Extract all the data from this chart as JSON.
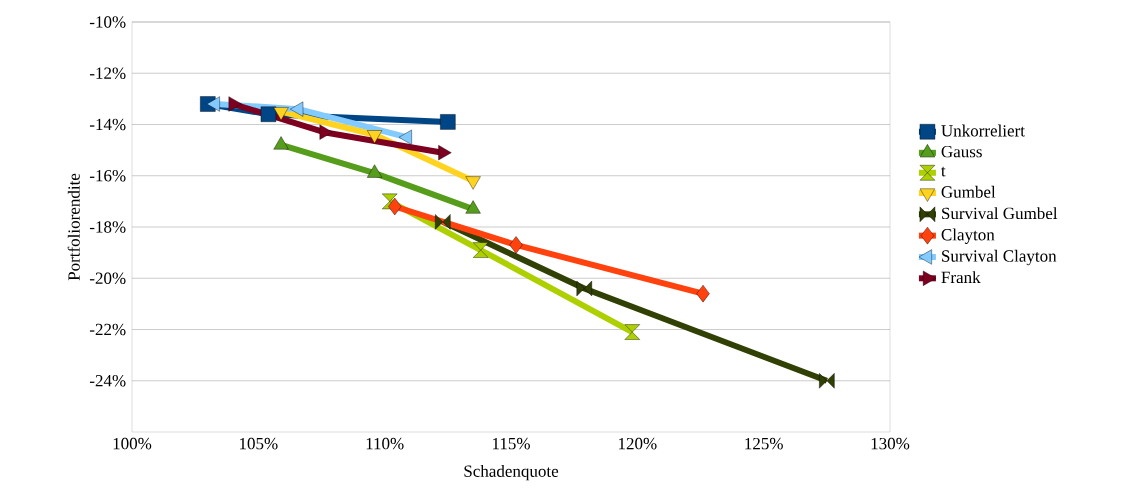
{
  "chart_data": {
    "type": "line",
    "xlabel": "Schadenquote",
    "ylabel": "Portfoliorendite",
    "xlim": [
      100,
      130
    ],
    "ylim": [
      -26,
      -10
    ],
    "xticks": [
      {
        "value": 100,
        "label": "100%"
      },
      {
        "value": 105,
        "label": "105%"
      },
      {
        "value": 110,
        "label": "110%"
      },
      {
        "value": 115,
        "label": "115%"
      },
      {
        "value": 120,
        "label": "120%"
      },
      {
        "value": 125,
        "label": "125%"
      },
      {
        "value": 130,
        "label": "130%"
      }
    ],
    "yticks": [
      {
        "value": -24,
        "label": "-24%"
      },
      {
        "value": -22,
        "label": "-22%"
      },
      {
        "value": -20,
        "label": "-20%"
      },
      {
        "value": -18,
        "label": "-18%"
      },
      {
        "value": -16,
        "label": "-16%"
      },
      {
        "value": -14,
        "label": "-14%"
      },
      {
        "value": -12,
        "label": "-12%"
      },
      {
        "value": -10,
        "label": "-10%"
      }
    ],
    "grid": "y",
    "legend": "right",
    "line_style": "solid",
    "series": [
      {
        "name": "Unkorreliert",
        "color": "#004586",
        "marker": "square",
        "x": [
          103.0,
          105.4,
          112.5
        ],
        "values": [
          -13.2,
          -13.6,
          -13.9
        ]
      },
      {
        "name": "Gauss",
        "color": "#579d1c",
        "marker": "triangle",
        "x": [
          105.9,
          109.6,
          113.5
        ],
        "values": [
          -14.8,
          -15.9,
          -17.3
        ]
      },
      {
        "name": "t",
        "color": "#aecf00",
        "marker": "diamond-hourglass",
        "x": [
          110.2,
          113.8,
          119.8
        ],
        "values": [
          -17.0,
          -18.9,
          -22.1
        ]
      },
      {
        "name": "Gumbel",
        "color": "#ffd320",
        "marker": "triangle-down",
        "x": [
          105.9,
          109.6,
          113.5
        ],
        "values": [
          -13.5,
          -14.4,
          -16.2
        ]
      },
      {
        "name": "Survival Gumbel",
        "color": "#314004",
        "marker": "diamond-bowtie",
        "x": [
          112.3,
          117.9,
          127.5
        ],
        "values": [
          -17.8,
          -20.4,
          -24.0
        ]
      },
      {
        "name": "Clayton",
        "color": "#ff420e",
        "marker": "diamond",
        "x": [
          110.4,
          115.2,
          122.6
        ],
        "values": [
          -17.2,
          -18.7,
          -20.6
        ]
      },
      {
        "name": "Survival Clayton",
        "color": "#83caff",
        "marker": "triangle-left",
        "x": [
          103.3,
          106.6,
          110.9
        ],
        "values": [
          -13.2,
          -13.4,
          -14.5
        ]
      },
      {
        "name": "Frank",
        "color": "#7e0021",
        "marker": "triangle-right",
        "x": [
          104.0,
          107.6,
          112.3
        ],
        "values": [
          -13.2,
          -14.3,
          -15.1
        ]
      }
    ]
  }
}
